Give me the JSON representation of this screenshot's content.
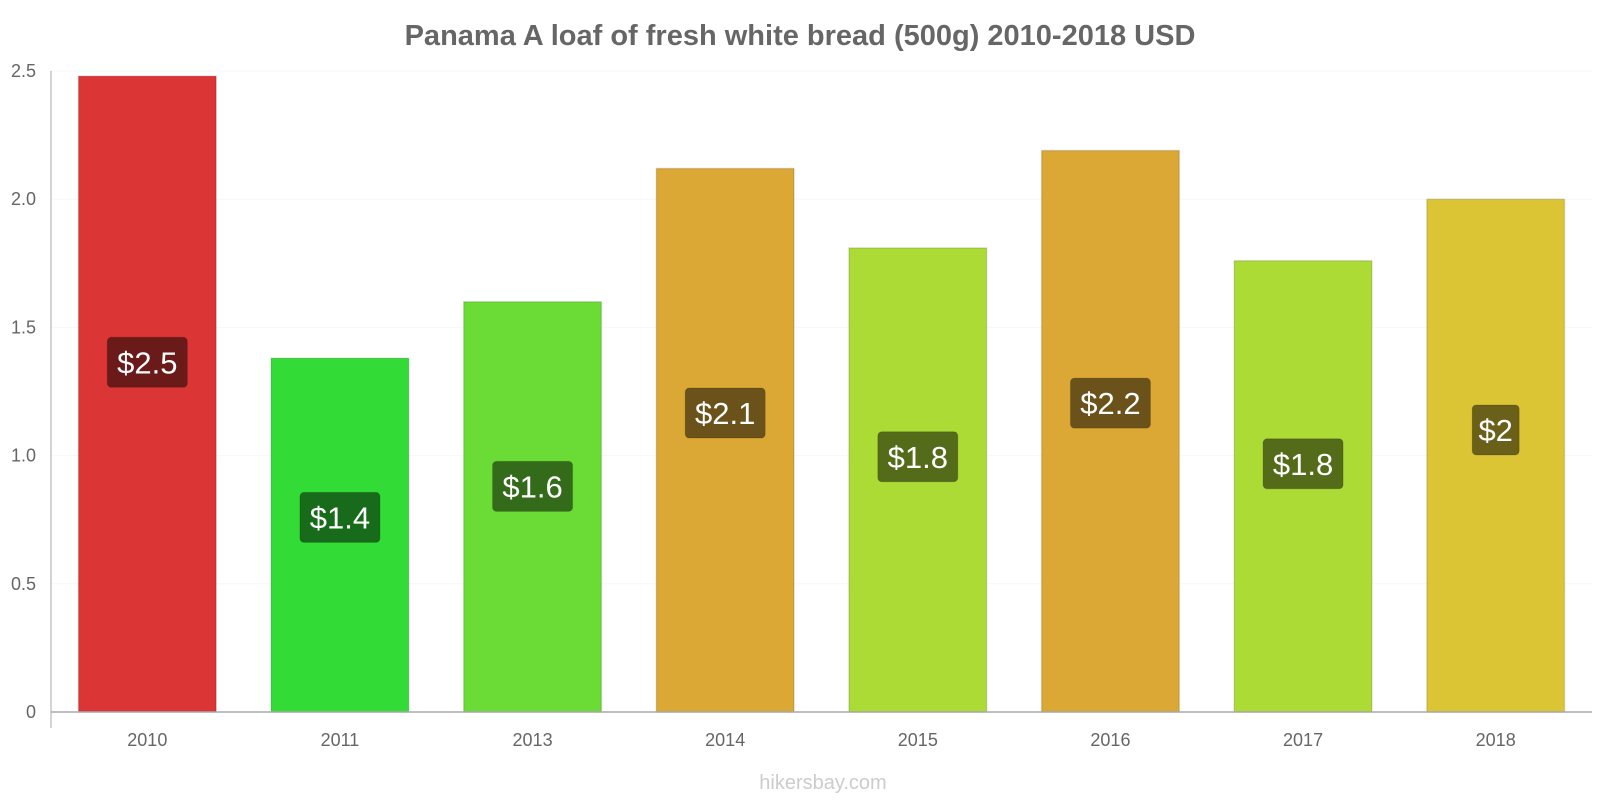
{
  "chart_data": {
    "type": "bar",
    "title": "Panama A loaf of fresh white bread (500g) 2010-2018 USD",
    "categories": [
      "2010",
      "2011",
      "2013",
      "2014",
      "2015",
      "2016",
      "2017",
      "2018"
    ],
    "values": [
      2.48,
      1.38,
      1.6,
      2.12,
      1.81,
      2.19,
      1.76,
      2.0
    ],
    "value_labels": [
      "$2.5",
      "$1.4",
      "$1.6",
      "$2.1",
      "$1.8",
      "$2.2",
      "$1.8",
      "$2"
    ],
    "bar_colors": [
      "#db3535",
      "#33db37",
      "#6bdb35",
      "#dba835",
      "#acdb35",
      "#dba835",
      "#acdb35",
      "#dbc535"
    ],
    "label_bg_colors": [
      "#6b1a1a",
      "#186b1a",
      "#346b1a",
      "#6b521a",
      "#546b1a",
      "#6b521a",
      "#546b1a",
      "#6b601a"
    ],
    "yticks": [
      "0",
      "0.5",
      "1.0",
      "1.5",
      "2.0",
      "2.5"
    ],
    "ylim": [
      0,
      2.5
    ],
    "xlabel": "",
    "ylabel": "",
    "grid": true,
    "legend": "none"
  },
  "credit": "hikersbay.com"
}
